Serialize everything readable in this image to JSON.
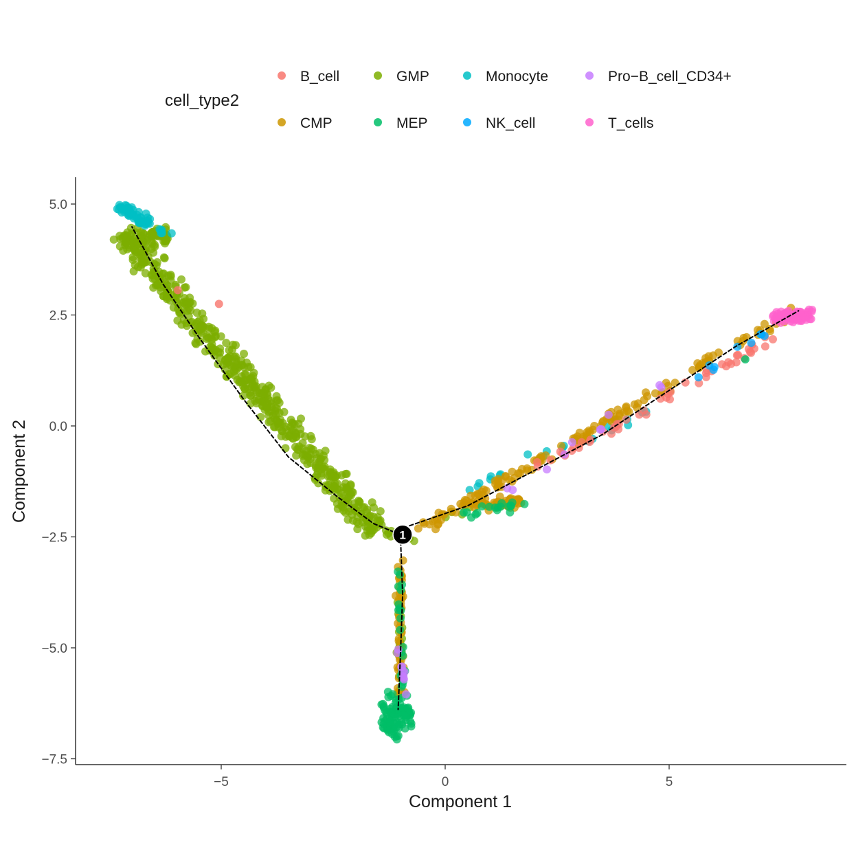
{
  "chart_data": {
    "type": "scatter",
    "title": "",
    "xlabel": "Component 1",
    "ylabel": "Component 2",
    "xlim": [
      -8.2,
      9
    ],
    "ylim": [
      -7.6,
      5.6
    ],
    "x_ticks": [
      -5,
      0,
      5
    ],
    "x_tick_labels": [
      "-5",
      "0",
      "5"
    ],
    "y_ticks": [
      5.0,
      2.5,
      0.0,
      -2.5,
      -5.0,
      -7.5
    ],
    "y_tick_labels": [
      "5.0",
      "2.5",
      "0.0",
      "-2.5",
      "-5.0",
      "-7.5"
    ],
    "grid": false,
    "legend": {
      "title": "cell_type2",
      "position": "top",
      "entries": [
        {
          "name": "B_cell",
          "color": "#F8766D"
        },
        {
          "name": "GMP",
          "color": "#7CAE00"
        },
        {
          "name": "Monocyte",
          "color": "#00BFC4"
        },
        {
          "name": "Pro-B_cell_CD34+",
          "color": "#C77CFF"
        },
        {
          "name": "CMP",
          "color": "#CD9600"
        },
        {
          "name": "MEP",
          "color": "#00BE67"
        },
        {
          "name": "NK_cell",
          "color": "#00A9FF"
        },
        {
          "name": "T_cells",
          "color": "#FF61CC"
        }
      ]
    },
    "trajectory": {
      "segments": [
        [
          [
            -1.0,
            -2.45
          ],
          [
            -1.6,
            -2.2
          ],
          [
            -2.4,
            -1.6
          ],
          [
            -3.5,
            -0.7
          ],
          [
            -4.5,
            0.6
          ],
          [
            -5.5,
            2.0
          ],
          [
            -6.3,
            3.2
          ],
          [
            -7.0,
            4.5
          ]
        ],
        [
          [
            -1.0,
            -2.45
          ],
          [
            -0.8,
            -2.25
          ],
          [
            0.5,
            -1.8
          ],
          [
            2.0,
            -1.0
          ],
          [
            3.5,
            -0.2
          ],
          [
            5.0,
            0.8
          ],
          [
            6.5,
            1.8
          ],
          [
            7.9,
            2.6
          ]
        ],
        [
          [
            -1.0,
            -2.45
          ],
          [
            -0.95,
            -3.8
          ],
          [
            -1.0,
            -5.2
          ],
          [
            -1.05,
            -6.4
          ]
        ]
      ],
      "branch_point": {
        "x": -0.95,
        "y": -2.45,
        "label": "1"
      }
    },
    "series": [
      {
        "name": "GMP",
        "color": "#7CAE00",
        "clusters": [
          {
            "x0": -7.25,
            "y0": 4.35,
            "x1": -1.55,
            "y1": -2.35,
            "width": 0.45,
            "n": 520
          },
          {
            "x0": -7.15,
            "y0": 4.15,
            "x1": -6.2,
            "y1": 4.3,
            "width": 0.35,
            "n": 80
          },
          {
            "x0": -1.4,
            "y0": -2.4,
            "x1": -0.65,
            "y1": -2.6,
            "width": 0.12,
            "n": 10
          },
          {
            "x0": -1.0,
            "y0": -3.2,
            "x1": -1.0,
            "y1": -5.9,
            "width": 0.1,
            "n": 14
          },
          {
            "x0": 0.0,
            "y0": -2.05,
            "x1": 0.6,
            "y1": -1.9,
            "width": 0.1,
            "n": 4
          }
        ]
      },
      {
        "name": "Monocyte",
        "color": "#00BFC4",
        "clusters": [
          {
            "x0": -7.3,
            "y0": 4.95,
            "x1": -6.6,
            "y1": 4.55,
            "width": 0.18,
            "n": 55
          },
          {
            "x0": -6.5,
            "y0": 4.4,
            "x1": -6.1,
            "y1": 4.25,
            "width": 0.1,
            "n": 6
          },
          {
            "x0": 0.5,
            "y0": -1.4,
            "x1": 4.5,
            "y1": 0.3,
            "width": 0.22,
            "n": 22
          }
        ]
      },
      {
        "name": "CMP",
        "color": "#CD9600",
        "clusters": [
          {
            "x0": -0.6,
            "y0": -2.35,
            "x1": 7.8,
            "y1": 2.6,
            "width": 0.2,
            "n": 150
          },
          {
            "x0": 0.6,
            "y0": -1.8,
            "x1": 1.7,
            "y1": -1.7,
            "width": 0.18,
            "n": 55
          },
          {
            "x0": -1.0,
            "y0": -2.9,
            "x1": -1.0,
            "y1": -6.2,
            "width": 0.12,
            "n": 60
          }
        ]
      },
      {
        "name": "MEP",
        "color": "#00BE67",
        "clusters": [
          {
            "x0": -1.1,
            "y0": -6.3,
            "x1": -1.1,
            "y1": -6.8,
            "width": 0.35,
            "n": 95
          },
          {
            "x0": -1.0,
            "y0": -3.0,
            "x1": -0.95,
            "y1": -6.0,
            "width": 0.1,
            "n": 22
          },
          {
            "x0": 0.4,
            "y0": -2.0,
            "x1": 1.8,
            "y1": -1.7,
            "width": 0.25,
            "n": 18
          }
        ]
      },
      {
        "name": "B_cell",
        "color": "#F8766D",
        "clusters": [
          {
            "x0": 2.0,
            "y0": -1.0,
            "x1": 7.4,
            "y1": 2.0,
            "width": 0.18,
            "n": 50
          }
        ]
      },
      {
        "name": "NK_cell",
        "color": "#00A9FF",
        "clusters": [
          {
            "x0": 4.8,
            "y0": 0.7,
            "x1": 7.6,
            "y1": 2.3,
            "width": 0.15,
            "n": 9
          }
        ]
      },
      {
        "name": "Pro-B_cell_CD34+",
        "color": "#C77CFF",
        "clusters": [
          {
            "x0": -1.15,
            "y0": -4.4,
            "x1": -0.85,
            "y1": -6.1,
            "width": 0.1,
            "n": 10
          },
          {
            "x0": 1.0,
            "y0": -1.7,
            "x1": 5.0,
            "y1": 1.0,
            "width": 0.2,
            "n": 10
          }
        ]
      },
      {
        "name": "T_cells",
        "color": "#FF61CC",
        "clusters": [
          {
            "x0": 7.3,
            "y0": 2.45,
            "x1": 8.2,
            "y1": 2.5,
            "width": 0.22,
            "n": 90
          }
        ]
      }
    ],
    "extra_points": [
      {
        "x": -5.97,
        "y": 3.06,
        "series": "B_cell"
      },
      {
        "x": -5.05,
        "y": 2.75,
        "series": "B_cell"
      },
      {
        "x": 6.7,
        "y": 1.5,
        "series": "MEP"
      }
    ]
  }
}
